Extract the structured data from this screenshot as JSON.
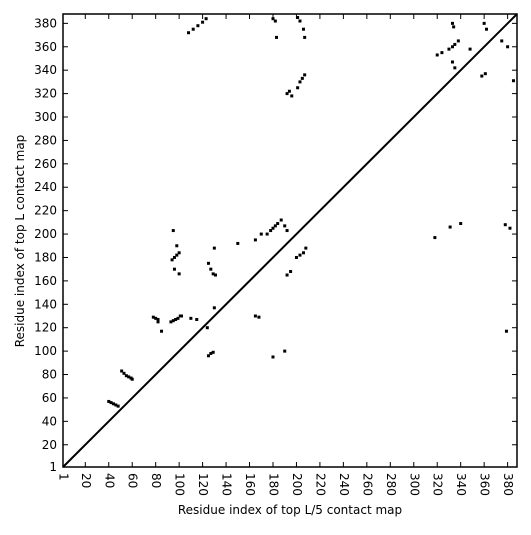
{
  "chart_data": {
    "type": "scatter",
    "x_label": "Residue index of top L/5 contact map",
    "y_label": "Residue index of top L contact map",
    "xlim": [
      1,
      388
    ],
    "ylim": [
      1,
      388
    ],
    "xticks": [
      1,
      20,
      40,
      60,
      80,
      100,
      120,
      140,
      160,
      180,
      200,
      220,
      240,
      260,
      280,
      300,
      320,
      340,
      360,
      380
    ],
    "yticks": [
      1,
      20,
      40,
      60,
      80,
      100,
      120,
      140,
      160,
      180,
      200,
      220,
      240,
      260,
      280,
      300,
      320,
      340,
      360,
      380
    ],
    "color": "#000000",
    "x": [
      40,
      42,
      44,
      46,
      48,
      51,
      53,
      55,
      57,
      59,
      60,
      78,
      80,
      82,
      82,
      93,
      95,
      97,
      99,
      101,
      94,
      96,
      98,
      100,
      98,
      96,
      102,
      110,
      115,
      125,
      127,
      129,
      124,
      130,
      125,
      127,
      129,
      131,
      130,
      150,
      165,
      170,
      175,
      178,
      180,
      182,
      184,
      187,
      190,
      192,
      200,
      203,
      206,
      208,
      195,
      192,
      180,
      190,
      165,
      168,
      108,
      112,
      116,
      120,
      123,
      180,
      182,
      183,
      192,
      194,
      196,
      201,
      203,
      205,
      207,
      201,
      203,
      206,
      207,
      320,
      324,
      330,
      333,
      335,
      338,
      333,
      335,
      333,
      334,
      348,
      358,
      361,
      360,
      362,
      375,
      380,
      385,
      318,
      331,
      340,
      378,
      382,
      379,
      95,
      100,
      85
    ],
    "y": [
      57,
      56,
      55,
      54,
      53,
      83,
      81,
      79,
      78,
      77,
      76,
      129,
      128,
      127,
      125,
      125,
      126,
      127,
      128,
      130,
      178,
      180,
      182,
      184,
      190,
      170,
      130,
      128,
      127,
      96,
      98,
      99,
      120,
      137,
      175,
      170,
      166,
      165,
      188,
      192,
      195,
      200,
      200,
      203,
      205,
      207,
      209,
      212,
      207,
      203,
      180,
      182,
      184,
      188,
      168,
      165,
      95,
      100,
      130,
      129,
      372,
      375,
      378,
      381,
      384,
      384,
      382,
      368,
      320,
      322,
      318,
      325,
      330,
      333,
      336,
      385,
      382,
      375,
      368,
      353,
      355,
      358,
      360,
      362,
      365,
      347,
      342,
      380,
      377,
      358,
      335,
      337,
      380,
      375,
      365,
      360,
      331,
      197,
      206,
      209,
      208,
      205,
      117,
      203,
      166,
      117
    ],
    "diagonal": {
      "x": [
        1,
        388
      ],
      "y": [
        1,
        388
      ]
    }
  }
}
